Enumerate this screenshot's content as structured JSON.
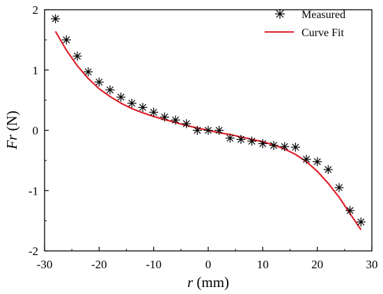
{
  "chart_data": {
    "type": "scatter",
    "xlabel": {
      "symbol": "r",
      "unit": "(mm)"
    },
    "ylabel": {
      "symbol": "Fr",
      "unit": "(N)"
    },
    "xlim": [
      -30,
      30
    ],
    "ylim": [
      -2,
      2
    ],
    "xticks": [
      "-30",
      "-20",
      "-10",
      "0",
      "10",
      "20",
      "30"
    ],
    "yticks": [
      "-2",
      "-1",
      "0",
      "1",
      "2"
    ],
    "x_tick_values": [
      -30,
      -20,
      -10,
      0,
      10,
      20,
      30
    ],
    "y_tick_values": [
      -2,
      -1,
      0,
      1,
      2
    ],
    "grid": false,
    "legend_position": "top-right",
    "series": [
      {
        "name": "Measured",
        "kind": "markers",
        "marker": "asterisk",
        "color": "#000000",
        "x": [
          -28,
          -26,
          -24,
          -22,
          -20,
          -18,
          -16,
          -14,
          -12,
          -10,
          -8,
          -6,
          -4,
          -2,
          0,
          2,
          4,
          6,
          8,
          10,
          12,
          14,
          16,
          18,
          20,
          22,
          24,
          26,
          28
        ],
        "y": [
          1.85,
          1.5,
          1.23,
          0.97,
          0.8,
          0.67,
          0.55,
          0.45,
          0.38,
          0.3,
          0.22,
          0.17,
          0.11,
          0.0,
          0.0,
          0.0,
          -0.13,
          -0.15,
          -0.18,
          -0.22,
          -0.25,
          -0.27,
          -0.28,
          -0.48,
          -0.52,
          -0.65,
          -0.95,
          -1.33,
          -1.52
        ]
      },
      {
        "name": "Curve Fit",
        "kind": "line",
        "color": "#e0202a",
        "x": [
          -28,
          -26,
          -24,
          -22,
          -20,
          -18,
          -16,
          -14,
          -12,
          -10,
          -8,
          -6,
          -4,
          -2,
          0,
          2,
          4,
          6,
          8,
          10,
          12,
          14,
          16,
          18,
          20,
          22,
          24,
          26,
          28
        ],
        "y": [
          1.64,
          1.33,
          1.07,
          0.86,
          0.69,
          0.56,
          0.45,
          0.36,
          0.29,
          0.23,
          0.18,
          0.13,
          0.08,
          0.04,
          0.0,
          -0.04,
          -0.07,
          -0.11,
          -0.15,
          -0.19,
          -0.24,
          -0.31,
          -0.4,
          -0.52,
          -0.68,
          -0.88,
          -1.11,
          -1.38,
          -1.65
        ]
      }
    ]
  }
}
